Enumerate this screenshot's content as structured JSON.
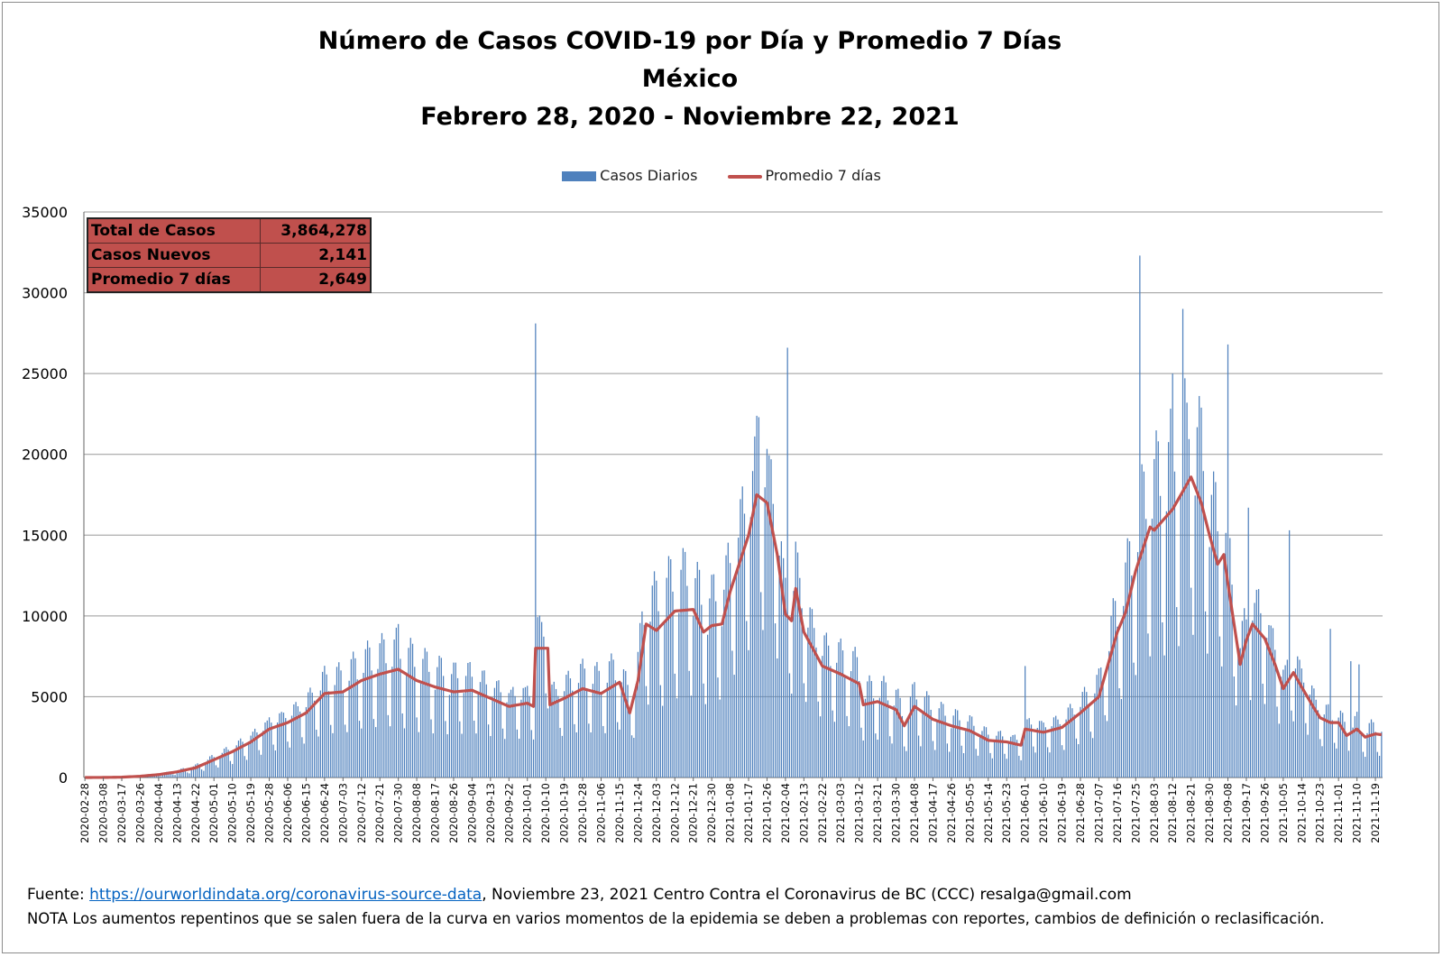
{
  "colors": {
    "bar": "#4f81bd",
    "line": "#c0504d",
    "grid": "#999999",
    "table_bg": "#c0504d"
  },
  "stats_table": [
    {
      "label": "Total de Casos",
      "value": "3,864,278"
    },
    {
      "label": "Casos Nuevos",
      "value": "2,141"
    },
    {
      "label": "Promedio 7 días",
      "value": "2,649"
    }
  ],
  "footer": {
    "source_label": "Fuente:",
    "source_url": "https://ourworldindata.org/coronavirus-source-data",
    "source_rest": ",   Noviembre 23, 2021    Centro Contra el Coronavirus de BC (CCC)    resalga@gmail.com",
    "note": "NOTA Los aumentos repentinos que se salen fuera de la curva en varios momentos de la epidemia se deben a problemas con reportes, cambios de definición o reclasificación."
  },
  "chart_data": {
    "type": "bar+line",
    "title": "Número de  Casos  COVID-19 por Día y Promedio 7 Días",
    "subtitle": "México",
    "date_range": "Febrero 28, 2020 - Noviembre 22, 2021",
    "legend": [
      "Casos Diarios",
      "Promedio 7 días"
    ],
    "legend_position": "top",
    "grid": "horizontal",
    "ylim": [
      0,
      35000
    ],
    "yticks": [
      "0",
      "5000",
      "10000",
      "15000",
      "20000",
      "25000",
      "30000",
      "35000"
    ],
    "x_start": "2020-02-28",
    "x_end": "2021-11-22",
    "xticks": [
      "2020-02-28",
      "2020-03-08",
      "2020-03-17",
      "2020-03-26",
      "2020-04-04",
      "2020-04-13",
      "2020-04-22",
      "2020-05-01",
      "2020-05-10",
      "2020-05-19",
      "2020-05-28",
      "2020-06-06",
      "2020-06-15",
      "2020-06-24",
      "2020-07-03",
      "2020-07-12",
      "2020-07-21",
      "2020-07-30",
      "2020-08-08",
      "2020-08-17",
      "2020-08-26",
      "2020-09-04",
      "2020-09-13",
      "2020-09-22",
      "2020-10-01",
      "2020-10-10",
      "2020-10-19",
      "2020-10-28",
      "2020-11-06",
      "2020-11-15",
      "2020-11-24",
      "2020-12-03",
      "2020-12-12",
      "2020-12-21",
      "2020-12-30",
      "2021-01-08",
      "2021-01-17",
      "2021-01-26",
      "2021-02-04",
      "2021-02-13",
      "2021-02-22",
      "2021-03-03",
      "2021-03-12",
      "2021-03-21",
      "2021-03-30",
      "2021-04-08",
      "2021-04-17",
      "2021-04-26",
      "2021-05-05",
      "2021-05-14",
      "2021-05-23",
      "2021-06-01",
      "2021-06-10",
      "2021-06-19",
      "2021-06-28",
      "2021-07-07",
      "2021-07-16",
      "2021-07-25",
      "2021-08-03",
      "2021-08-12",
      "2021-08-21",
      "2021-08-30",
      "2021-09-08",
      "2021-09-17",
      "2021-09-26",
      "2021-10-05",
      "2021-10-14",
      "2021-10-23",
      "2021-11-01",
      "2021-11-10",
      "2021-11-19"
    ],
    "series": [
      {
        "name": "Promedio 7 días",
        "type": "line",
        "points": [
          [
            "2020-02-28",
            0
          ],
          [
            "2020-03-08",
            5
          ],
          [
            "2020-03-17",
            20
          ],
          [
            "2020-03-26",
            80
          ],
          [
            "2020-04-04",
            180
          ],
          [
            "2020-04-13",
            350
          ],
          [
            "2020-04-22",
            600
          ],
          [
            "2020-05-01",
            1100
          ],
          [
            "2020-05-10",
            1600
          ],
          [
            "2020-05-19",
            2200
          ],
          [
            "2020-05-28",
            3000
          ],
          [
            "2020-06-06",
            3400
          ],
          [
            "2020-06-15",
            4000
          ],
          [
            "2020-06-24",
            5200
          ],
          [
            "2020-07-03",
            5300
          ],
          [
            "2020-07-12",
            6000
          ],
          [
            "2020-07-21",
            6400
          ],
          [
            "2020-07-30",
            6700
          ],
          [
            "2020-08-08",
            6000
          ],
          [
            "2020-08-17",
            5600
          ],
          [
            "2020-08-26",
            5300
          ],
          [
            "2020-09-04",
            5400
          ],
          [
            "2020-09-13",
            4900
          ],
          [
            "2020-09-22",
            4400
          ],
          [
            "2020-10-01",
            4600
          ],
          [
            "2020-10-04",
            4400
          ],
          [
            "2020-10-05",
            8000
          ],
          [
            "2020-10-11",
            8000
          ],
          [
            "2020-10-12",
            4500
          ],
          [
            "2020-10-19",
            4900
          ],
          [
            "2020-10-28",
            5500
          ],
          [
            "2020-11-06",
            5200
          ],
          [
            "2020-11-15",
            5900
          ],
          [
            "2020-11-20",
            4000
          ],
          [
            "2020-11-24",
            6000
          ],
          [
            "2020-11-28",
            9500
          ],
          [
            "2020-12-03",
            9100
          ],
          [
            "2020-12-12",
            10300
          ],
          [
            "2020-12-21",
            10400
          ],
          [
            "2020-12-26",
            9000
          ],
          [
            "2020-12-30",
            9400
          ],
          [
            "2021-01-04",
            9500
          ],
          [
            "2021-01-08",
            11500
          ],
          [
            "2021-01-17",
            15000
          ],
          [
            "2021-01-21",
            17500
          ],
          [
            "2021-01-26",
            17000
          ],
          [
            "2021-01-31",
            13800
          ],
          [
            "2021-02-04",
            10100
          ],
          [
            "2021-02-07",
            9700
          ],
          [
            "2021-02-09",
            11700
          ],
          [
            "2021-02-13",
            9000
          ],
          [
            "2021-02-22",
            6900
          ],
          [
            "2021-03-03",
            6400
          ],
          [
            "2021-03-12",
            5800
          ],
          [
            "2021-03-14",
            4500
          ],
          [
            "2021-03-21",
            4700
          ],
          [
            "2021-03-30",
            4200
          ],
          [
            "2021-04-03",
            3200
          ],
          [
            "2021-04-08",
            4400
          ],
          [
            "2021-04-17",
            3600
          ],
          [
            "2021-04-26",
            3200
          ],
          [
            "2021-05-05",
            2900
          ],
          [
            "2021-05-14",
            2300
          ],
          [
            "2021-05-23",
            2200
          ],
          [
            "2021-05-30",
            2000
          ],
          [
            "2021-06-01",
            3000
          ],
          [
            "2021-06-10",
            2800
          ],
          [
            "2021-06-19",
            3100
          ],
          [
            "2021-06-28",
            4000
          ],
          [
            "2021-07-07",
            5000
          ],
          [
            "2021-07-16",
            9000
          ],
          [
            "2021-07-20",
            10200
          ],
          [
            "2021-07-25",
            12800
          ],
          [
            "2021-08-01",
            15500
          ],
          [
            "2021-08-03",
            15300
          ],
          [
            "2021-08-12",
            16600
          ],
          [
            "2021-08-21",
            18600
          ],
          [
            "2021-08-26",
            17000
          ],
          [
            "2021-08-30",
            15000
          ],
          [
            "2021-09-03",
            13200
          ],
          [
            "2021-09-06",
            13800
          ],
          [
            "2021-09-08",
            12000
          ],
          [
            "2021-09-14",
            7000
          ],
          [
            "2021-09-17",
            8500
          ],
          [
            "2021-09-20",
            9500
          ],
          [
            "2021-09-26",
            8600
          ],
          [
            "2021-10-01",
            7000
          ],
          [
            "2021-10-05",
            5500
          ],
          [
            "2021-10-10",
            6500
          ],
          [
            "2021-10-14",
            5600
          ],
          [
            "2021-10-20",
            4300
          ],
          [
            "2021-10-23",
            3700
          ],
          [
            "2021-10-28",
            3400
          ],
          [
            "2021-11-01",
            3400
          ],
          [
            "2021-11-05",
            2600
          ],
          [
            "2021-11-10",
            3000
          ],
          [
            "2021-11-14",
            2500
          ],
          [
            "2021-11-19",
            2700
          ],
          [
            "2021-11-22",
            2649
          ]
        ]
      },
      {
        "name": "Casos Diarios",
        "type": "bar",
        "note_values": "daily counts fluctuate around the 7-day average with weekday variation",
        "spikes": [
          [
            "2020-07-30",
            9500
          ],
          [
            "2020-10-05",
            28100
          ],
          [
            "2021-01-22",
            22300
          ],
          [
            "2021-02-05",
            26600
          ],
          [
            "2021-06-01",
            6900
          ],
          [
            "2021-07-27",
            32300
          ],
          [
            "2021-08-12",
            25000
          ],
          [
            "2021-08-17",
            29000
          ],
          [
            "2021-08-19",
            23200
          ],
          [
            "2021-09-08",
            26800
          ],
          [
            "2021-09-18",
            16700
          ],
          [
            "2021-10-08",
            15300
          ],
          [
            "2021-10-28",
            9200
          ],
          [
            "2021-11-07",
            7200
          ],
          [
            "2021-11-11",
            7000
          ]
        ]
      }
    ]
  }
}
